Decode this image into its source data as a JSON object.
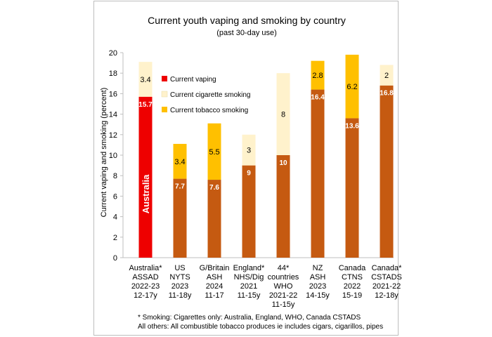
{
  "chart_data": {
    "type": "bar",
    "stacked": true,
    "title": "Current youth vaping and smoking by country",
    "subtitle": "(past 30-day use)",
    "ylabel": "Current vaping and smoking (percent)",
    "xlabel": "",
    "ylim": [
      0,
      20
    ],
    "yticks": [
      0,
      2,
      4,
      6,
      8,
      10,
      12,
      14,
      16,
      18,
      20
    ],
    "grid": false,
    "legend_position": "top-left inside plot",
    "categories": [
      [
        "Australia*",
        "ASSAD",
        "2022-23",
        "12-17y"
      ],
      [
        "US",
        "NYTS",
        "2023",
        "11-18y"
      ],
      [
        "G/Britain",
        "ASH",
        "2024",
        "11-17"
      ],
      [
        "England*",
        "NHS/Dig",
        "2021",
        "11-15y"
      ],
      [
        "44*",
        "countries",
        "WHO",
        "2021-22",
        "11-15y"
      ],
      [
        "NZ",
        "ASH",
        "2023",
        "14-15y"
      ],
      [
        "Canada",
        "CTNS",
        "2022",
        "15-19"
      ],
      [
        "Canada*",
        "CSTADS",
        "2021-22",
        "12-18y"
      ]
    ],
    "vaping": [
      15.7,
      7.7,
      7.6,
      9,
      10,
      16.4,
      13.6,
      16.8
    ],
    "smoking": [
      3.4,
      3.4,
      5.5,
      3,
      8,
      2.8,
      6.2,
      2
    ],
    "smoking_kind": [
      "cigarette",
      "tobacco",
      "tobacco",
      "cigarette",
      "cigarette",
      "tobacco",
      "tobacco",
      "cigarette"
    ],
    "vaping_colors": [
      "#ee0000",
      "#c55a11",
      "#c55a11",
      "#c55a11",
      "#c55a11",
      "#c55a11",
      "#c55a11",
      "#c55a11"
    ],
    "colors": {
      "current_vaping": "#ee0000",
      "vaping_other": "#c55a11",
      "cigarette_smoking": "#fff2cc",
      "tobacco_smoking": "#ffc000"
    },
    "legend": [
      {
        "label": "Current vaping",
        "color": "#ee0000"
      },
      {
        "label": "Current cigarette smoking",
        "color": "#fff2cc"
      },
      {
        "label": "Current tobacco smoking",
        "color": "#ffc000"
      }
    ],
    "bar_annotation": "Australia"
  },
  "footnotes": [
    "* Smoking:  Cigarettes only: Australia, England, WHO, Canada CSTADS",
    "All others: All combustible tobacco produces ie includes cigars, cigarillos, pipes"
  ]
}
